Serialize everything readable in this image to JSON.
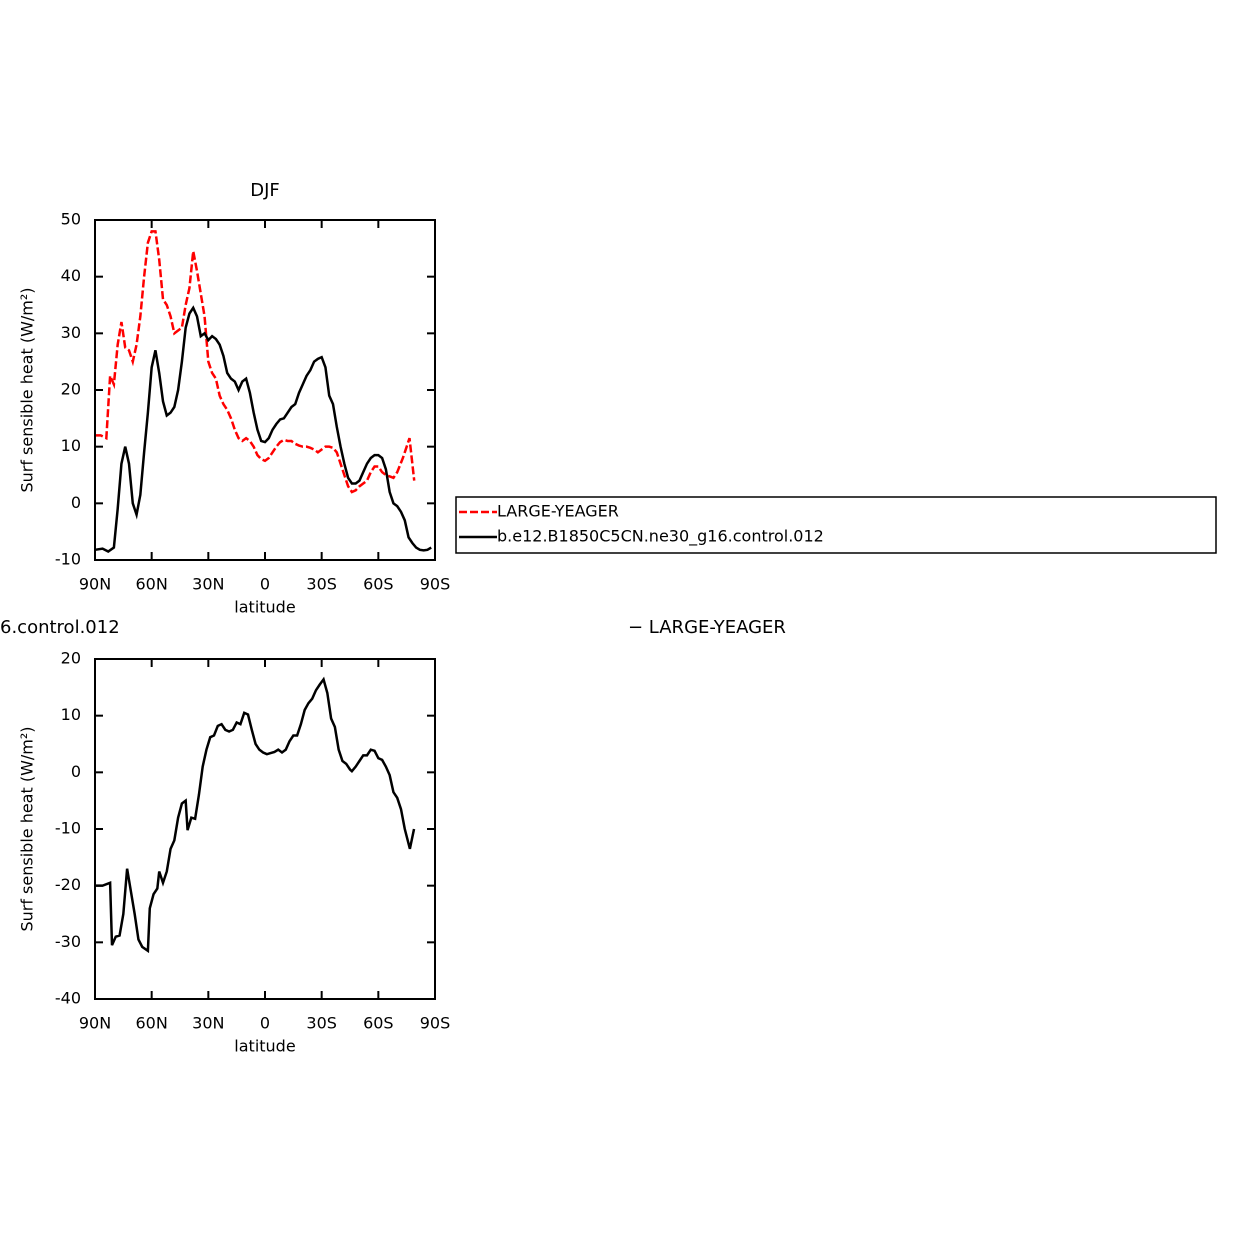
{
  "chart_data": [
    {
      "type": "line",
      "title": "DJF",
      "xlabel": "latitude",
      "ylabel": "Surf sensible heat (W/m²)",
      "xlim": [
        90,
        -90
      ],
      "ylim": [
        -10,
        50
      ],
      "xticks": [
        {
          "value": 90,
          "label": "90N"
        },
        {
          "value": 60,
          "label": "60N"
        },
        {
          "value": 30,
          "label": "30N"
        },
        0,
        {
          "value": -30,
          "label": "30S"
        },
        {
          "value": -60,
          "label": "60S"
        },
        {
          "value": -90,
          "label": "90S"
        }
      ],
      "yticks": [
        -10,
        0,
        10,
        20,
        30,
        40,
        50
      ],
      "legend": "right",
      "series": [
        {
          "name": "LARGE-YEAGER",
          "color": "#ff0000",
          "dash": true,
          "x": [
            90,
            87,
            84,
            82,
            80,
            78,
            76,
            74,
            72,
            70,
            68,
            66,
            64,
            62,
            60,
            58,
            56,
            54,
            52,
            50,
            48,
            46,
            44,
            42,
            40,
            38,
            36,
            34,
            32,
            30,
            28,
            26,
            24,
            22,
            20,
            18,
            16,
            14,
            12,
            10,
            8,
            6,
            4,
            2,
            0,
            -2,
            -4,
            -6,
            -8,
            -10,
            -12,
            -14,
            -16,
            -18,
            -20,
            -22,
            -24,
            -26,
            -28,
            -30,
            -32,
            -34,
            -36,
            -38,
            -40,
            -42,
            -44,
            -46,
            -48,
            -50,
            -52,
            -54,
            -56,
            -58,
            -60,
            -62,
            -64,
            -68,
            -70,
            -73,
            -76.5,
            -79
          ],
          "values": [
            12,
            12,
            11.5,
            22.5,
            21,
            28,
            32,
            27.5,
            27,
            25,
            28,
            33,
            40,
            46,
            48,
            48,
            43,
            36,
            35,
            33,
            30,
            30.5,
            31,
            35,
            38,
            44.5,
            41,
            37,
            33,
            25,
            23,
            22,
            19,
            17.5,
            16.5,
            15,
            13,
            11.5,
            11,
            11.5,
            11,
            10,
            8.5,
            7.8,
            7.5,
            8,
            9,
            10,
            10.8,
            11.2,
            11,
            11,
            10.5,
            10.2,
            10,
            10,
            9.8,
            9.5,
            9,
            9.5,
            10,
            10,
            9.8,
            9,
            7,
            5,
            3,
            2,
            2.3,
            3,
            3.5,
            4,
            5.5,
            6.5,
            6.5,
            5.5,
            5,
            4.5,
            5.5,
            8,
            11.5,
            4
          ]
        },
        {
          "name": "b.e12.B1850C5CN.ne30_g16.control.012",
          "color": "#000000",
          "dash": false,
          "x": [
            90,
            86,
            83,
            80,
            78,
            76,
            74,
            72,
            70,
            68,
            66,
            64,
            62,
            60,
            58,
            56,
            54,
            52,
            50,
            48,
            46,
            44,
            42,
            40,
            38,
            36,
            34,
            32,
            30,
            28,
            26,
            24,
            22,
            20,
            18,
            16,
            14,
            12,
            10,
            8,
            6,
            4,
            2,
            0,
            -2,
            -4,
            -6,
            -8,
            -10,
            -12,
            -14,
            -16,
            -18,
            -20,
            -22,
            -24,
            -26,
            -28,
            -30,
            -32,
            -34,
            -36,
            -38,
            -40,
            -42,
            -44,
            -46,
            -48,
            -50,
            -52,
            -54,
            -56,
            -58,
            -60,
            -62,
            -64,
            -66,
            -68,
            -70,
            -72,
            -74,
            -76,
            -78,
            -80,
            -82,
            -84,
            -86,
            -88
          ],
          "values": [
            -8.2,
            -8,
            -8.5,
            -7.8,
            -1,
            7,
            10,
            7,
            0,
            -2,
            1.5,
            9,
            16,
            24,
            27,
            23,
            18,
            15.5,
            16,
            17,
            20,
            25,
            31,
            33.5,
            34.5,
            33,
            29.5,
            30,
            28.8,
            29.5,
            29,
            28,
            26,
            23,
            22,
            21.5,
            20,
            21.5,
            22,
            19.5,
            16,
            13,
            11,
            10.8,
            11.5,
            13,
            14,
            14.8,
            15,
            16,
            17,
            17.5,
            19.5,
            21,
            22.5,
            23.5,
            25,
            25.5,
            25.8,
            24,
            19,
            17.5,
            13.5,
            10,
            7,
            4.5,
            3.5,
            3.5,
            4,
            5.5,
            7,
            8,
            8.5,
            8.5,
            8,
            6,
            2,
            0,
            -0.5,
            -1.5,
            -3,
            -6,
            -7,
            -7.8,
            -8.2,
            -8.3,
            -8.2,
            -7.8
          ]
        }
      ]
    },
    {
      "type": "line",
      "title_left": "6.control.012",
      "title_right": "− LARGE-YEAGER",
      "xlabel": "latitude",
      "ylabel": "Surf sensible heat (W/m²)",
      "xlim": [
        90,
        -90
      ],
      "ylim": [
        -40,
        20
      ],
      "xticks": [
        {
          "value": 90,
          "label": "90N"
        },
        {
          "value": 60,
          "label": "60N"
        },
        {
          "value": 30,
          "label": "30N"
        },
        0,
        {
          "value": -30,
          "label": "30S"
        },
        {
          "value": -60,
          "label": "60S"
        },
        {
          "value": -90,
          "label": "90S"
        }
      ],
      "yticks": [
        -40,
        -30,
        -20,
        -10,
        0,
        10,
        20
      ],
      "series": [
        {
          "color": "#000000",
          "dash": false,
          "x": [
            90,
            86,
            82,
            81,
            79,
            77,
            75,
            73,
            71,
            69,
            67,
            65,
            62,
            61,
            59,
            57,
            56,
            54,
            52,
            50,
            48,
            46,
            44,
            42,
            41,
            39,
            37,
            35,
            33,
            31,
            29,
            27,
            25,
            23,
            21,
            19,
            17,
            15,
            13,
            11,
            9,
            7,
            5,
            3,
            1,
            -1,
            -3,
            -5,
            -7,
            -9,
            -11,
            -13,
            -15,
            -17,
            -19,
            -21,
            -23,
            -25,
            -27,
            -29,
            -31,
            -33,
            -35,
            -37,
            -39,
            -41,
            -43,
            -45,
            -46,
            -48,
            -50,
            -52,
            -54,
            -56,
            -58,
            -60,
            -62,
            -64,
            -66,
            -68,
            -70,
            -72,
            -74,
            -76.7,
            -78.9
          ],
          "values": [
            -20,
            -20,
            -19.5,
            -30.5,
            -29,
            -28.8,
            -25,
            -17,
            -21,
            -25,
            -29.5,
            -30.8,
            -31.5,
            -24,
            -21.5,
            -20.5,
            -17.5,
            -19.5,
            -17.5,
            -13.5,
            -12,
            -8,
            -5.5,
            -5,
            -10.2,
            -8,
            -8.2,
            -4,
            1,
            4,
            6.2,
            6.5,
            8.2,
            8.5,
            7.5,
            7.2,
            7.5,
            8.8,
            8.5,
            10.5,
            10.2,
            7.5,
            5,
            4,
            3.5,
            3.2,
            3.4,
            3.6,
            4,
            3.5,
            4,
            5.5,
            6.5,
            6.5,
            8.5,
            11,
            12.2,
            13,
            14.5,
            15.5,
            16.4,
            14,
            9.5,
            8,
            4,
            2,
            1.5,
            0.5,
            0.2,
            1,
            2,
            3,
            3,
            4,
            3.8,
            2.5,
            2.2,
            1,
            -0.5,
            -3.5,
            -4.5,
            -6.5,
            -10,
            -13.5,
            -10
          ]
        }
      ]
    }
  ]
}
